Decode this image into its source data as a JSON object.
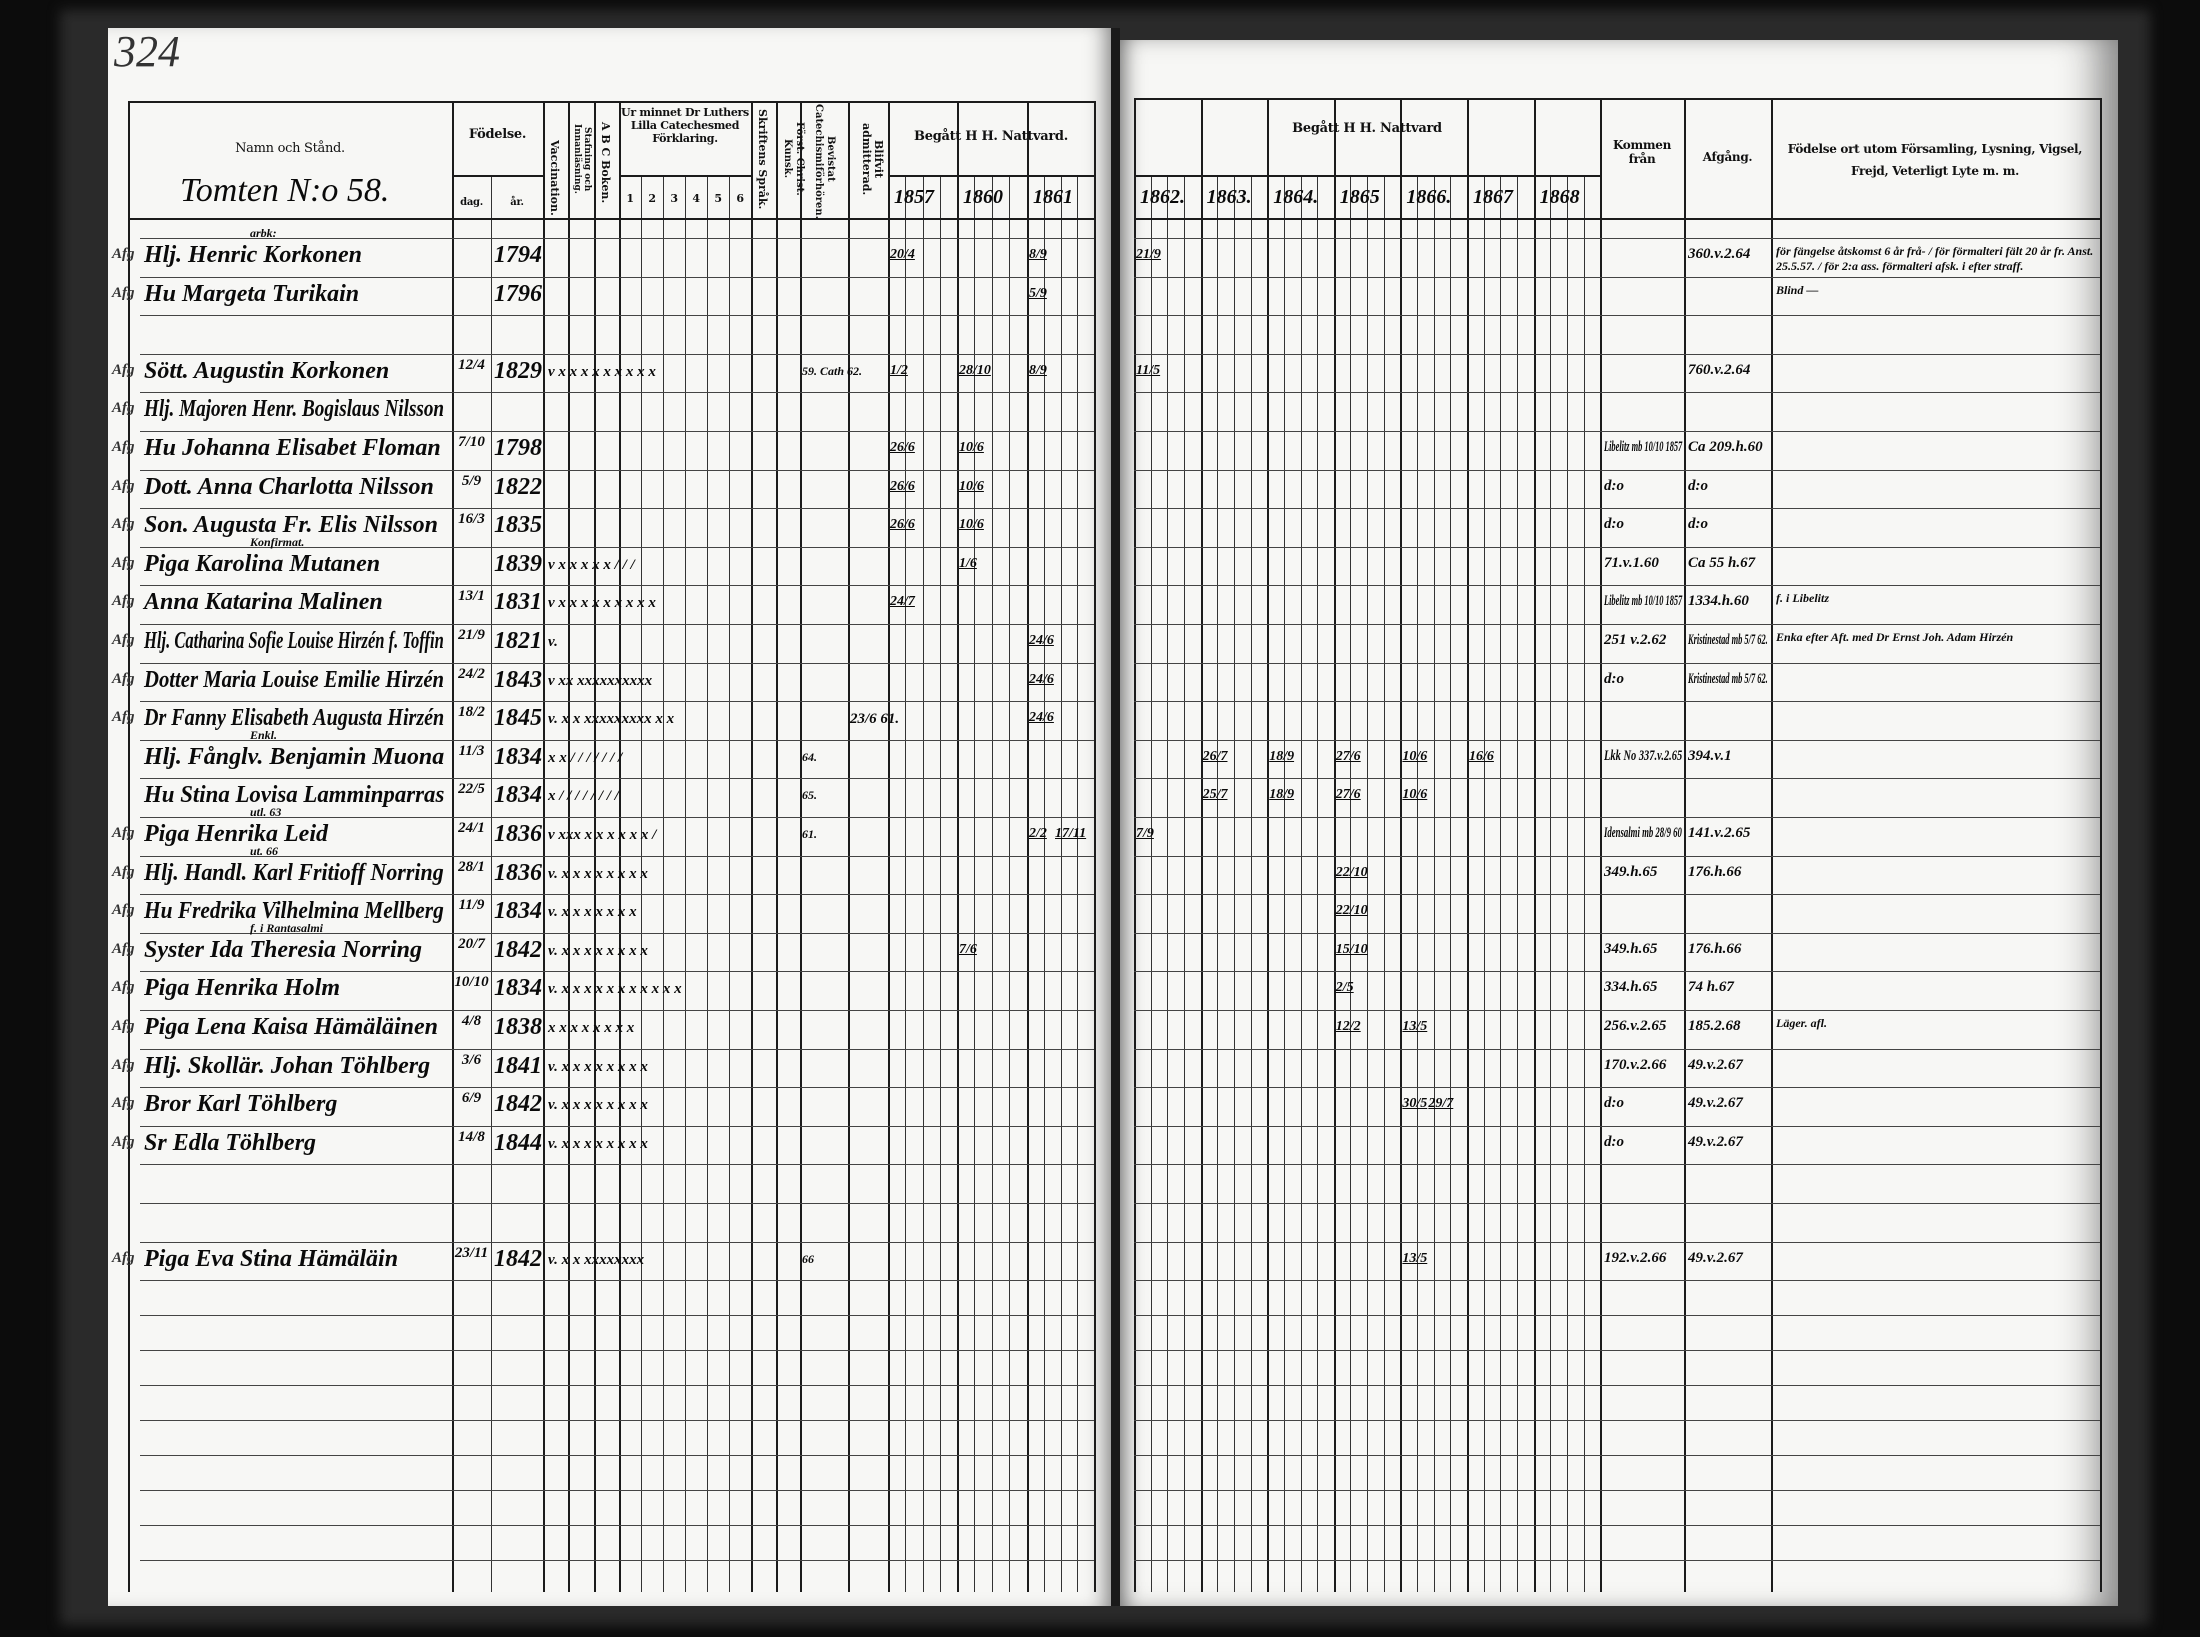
{
  "page_number": "324",
  "left_header": {
    "name_col": "Namn och Stånd.",
    "section_title": "Tomten N:o 58.",
    "fodelse": "Födelse.",
    "dag": "dag.",
    "ar": "år.",
    "vaccination": "Vaccination.",
    "lasning": "Stafning och Innanläsning.",
    "abc": "A B C Boken.",
    "ur_minnet": "Ur minnet Dr Luthers Lilla Catechesmed Förklaring.",
    "ur_minnet_numbers": [
      "1",
      "2",
      "3",
      "4",
      "5",
      "6"
    ],
    "skriftens": "Skriftens Språk.",
    "forst_christ": "Först. Christ. Kunsk.",
    "bevistat": "Bevistat Catechismiförhören.",
    "blifvit": "Blifvit admitterad.",
    "begatt": "Begått H H. Nattvard.",
    "years": [
      "1857",
      "1860",
      "1861"
    ]
  },
  "right_header": {
    "begatt": "Begått H H. Nattvard",
    "years": [
      "1862.",
      "1863.",
      "1864.",
      "1865",
      "1866.",
      "1867",
      "1868"
    ],
    "kommen": "Kommen från",
    "afgang": "Afgång.",
    "notes": "Födelse ort utom Församling, Lysning, Vigsel, Frejd, Veterligt Lyte m. m."
  },
  "rows": [
    {
      "margin": "Afg",
      "above": "arbk:",
      "name": "Hlj. Henric Korkonen",
      "day": "",
      "year": "1794",
      "marks": "",
      "bevistat": "",
      "blifvit": "",
      "communion": {
        "1857": [
          "20/4"
        ],
        "1861": [
          "8/9"
        ],
        "1862": [
          "21/9"
        ]
      },
      "kommen": "",
      "afgang": "360.v.2.64",
      "notes": "för fängelse åtskomst 6 år frå- / för förmalteri fält 20 år fr. Anst. 25.5.57. / för 2:a ass. förmalteri afsk. i efter straff."
    },
    {
      "margin": "Afg",
      "above": "",
      "name": "Hu Margeta Turikain",
      "day": "",
      "year": "1796",
      "marks": "",
      "bevistat": "",
      "blifvit": "",
      "communion": {
        "1861": [
          "5/9"
        ]
      },
      "kommen": "",
      "afgang": "",
      "notes": "Blind —"
    },
    {
      "margin": "",
      "above": "",
      "name": "",
      "day": "",
      "year": "",
      "marks": "",
      "bevistat": "",
      "blifvit": "",
      "communion": {},
      "kommen": "",
      "afgang": "",
      "notes": ""
    },
    {
      "margin": "Afg",
      "above": "",
      "name": "Sött. Augustin Korkonen",
      "day": "12/4",
      "year": "1829",
      "marks": "v x x x x x x x x x",
      "bevistat": "59. Cath 62.",
      "blifvit": "",
      "communion": {
        "1857": [
          "1/2"
        ],
        "1860": [
          "28/10"
        ],
        "1861": [
          "8/9"
        ],
        "1862": [
          "11/5"
        ]
      },
      "kommen": "",
      "afgang": "760.v.2.64",
      "notes": ""
    },
    {
      "margin": "Afg",
      "above": "",
      "name": "Hlj. Majoren Henr. Bogislaus Nilsson",
      "day": "",
      "year": "",
      "marks": "",
      "bevistat": "",
      "blifvit": "",
      "communion": {},
      "kommen": "",
      "afgang": "",
      "notes": ""
    },
    {
      "margin": "Afg",
      "above": "",
      "name": "Hu Johanna Elisabet Floman",
      "day": "7/10",
      "year": "1798",
      "marks": "",
      "bevistat": "",
      "blifvit": "",
      "communion": {
        "1857": [
          "26/6"
        ],
        "1860": [
          "10/6"
        ]
      },
      "kommen": "Libelitz mb 10/10 1857",
      "afgang": "Ca 209.h.60",
      "notes": ""
    },
    {
      "margin": "Afg",
      "above": "",
      "name": "Dott. Anna Charlotta Nilsson",
      "day": "5/9",
      "year": "1822",
      "marks": "",
      "bevistat": "",
      "blifvit": "",
      "communion": {
        "1857": [
          "26/6"
        ],
        "1860": [
          "10/6"
        ]
      },
      "kommen": "d:o",
      "afgang": "d:o",
      "notes": ""
    },
    {
      "margin": "Afg",
      "above": "",
      "name": "Son. Augusta Fr. Elis Nilsson",
      "day": "16/3",
      "year": "1835",
      "marks": "",
      "bevistat": "",
      "blifvit": "",
      "communion": {
        "1857": [
          "26/6"
        ],
        "1860": [
          "10/6"
        ]
      },
      "kommen": "d:o",
      "afgang": "d:o",
      "notes": ""
    },
    {
      "margin": "Afg",
      "above": "Konfirmat.",
      "name": "Piga Karolina Mutanen",
      "day": "",
      "year": "1839",
      "marks": "v x x x x x / / /",
      "bevistat": "",
      "blifvit": "",
      "communion": {
        "1860": [
          "1/6"
        ]
      },
      "kommen": "71.v.1.60",
      "afgang": "Ca 55 h.67",
      "notes": ""
    },
    {
      "margin": "Afg",
      "above": "",
      "name": "Anna Katarina Malinen",
      "day": "13/1",
      "year": "1831",
      "marks": "v x x x x x x x x x",
      "bevistat": "",
      "blifvit": "",
      "communion": {
        "1857": [
          "24/7"
        ]
      },
      "kommen": "Libelitz mb 10/10 1857",
      "afgang": "1334.h.60",
      "notes": "f. i Libelitz"
    },
    {
      "margin": "Afg",
      "above": "",
      "name": "Hlj. Catharina Sofie Louise Hirzén f. Toffin",
      "day": "21/9",
      "year": "1821",
      "marks": "v.",
      "bevistat": "",
      "blifvit": "",
      "communion": {
        "1861": [
          "24/6"
        ]
      },
      "kommen": "251 v.2.62",
      "afgang": "Kristinestad mb 5/7 62.",
      "notes": "Enka efter Aft. med Dr Ernst Joh. Adam Hirzén"
    },
    {
      "margin": "Afg",
      "above": "",
      "name": "Dotter Maria Louise Emilie Hirzén",
      "day": "24/2",
      "year": "1843",
      "marks": "v xx xxxxxxxxxx",
      "bevistat": "",
      "blifvit": "",
      "communion": {
        "1861": [
          "24/6"
        ]
      },
      "kommen": "d:o",
      "afgang": "Kristinestad mb 5/7 62.",
      "notes": ""
    },
    {
      "margin": "Afg",
      "above": "",
      "name": "Dr Fanny Elisabeth Augusta Hirzén",
      "day": "18/2",
      "year": "1845",
      "marks": "v. x x xxxxxxxxx x x",
      "bevistat": "",
      "blifvit": "23/6 61.",
      "communion": {
        "1861": [
          "24/6"
        ]
      },
      "kommen": "",
      "afgang": "",
      "notes": ""
    },
    {
      "margin": "",
      "above": "Enkl.",
      "name": "Hlj. Fånglv. Benjamin Muona",
      "day": "11/3",
      "year": "1834",
      "marks": "x x / / / / / / /",
      "bevistat": "64.",
      "blifvit": "",
      "communion": {
        "1863": [
          "26/7"
        ],
        "1864": [
          "18/9"
        ],
        "1865": [
          "27/6"
        ],
        "1866": [
          "10/6"
        ],
        "1867": [
          "16/6"
        ]
      },
      "kommen": "Lkk No 337.v.2.65",
      "afgang": "394.v.1",
      "notes": ""
    },
    {
      "margin": "",
      "above": "",
      "name": "Hu Stina Lovisa Lamminparras",
      "day": "22/5",
      "year": "1834",
      "marks": "x / / / / / / / /",
      "bevistat": "65.",
      "blifvit": "",
      "communion": {
        "1863": [
          "25/7"
        ],
        "1864": [
          "18/9"
        ],
        "1865": [
          "27/6"
        ],
        "1866": [
          "10/6"
        ]
      },
      "kommen": "",
      "afgang": "",
      "notes": ""
    },
    {
      "margin": "Afg",
      "above": "utl. 63",
      "name": "Piga Henrika Leid",
      "day": "24/1",
      "year": "1836",
      "marks": "v xxx x x x x x x /",
      "bevistat": "61.",
      "blifvit": "",
      "communion": {
        "1861": [
          "2/2",
          "17/11"
        ],
        "1862": [
          "7/9"
        ]
      },
      "kommen": "Idensalmi mb 28/9 60",
      "afgang": "141.v.2.65",
      "notes": ""
    },
    {
      "margin": "Afg",
      "above": "ut. 66",
      "name": "Hlj. Handl. Karl Fritioff Norring",
      "day": "28/1",
      "year": "1836",
      "marks": "v. x x x x x x x x",
      "bevistat": "",
      "blifvit": "",
      "communion": {
        "1865": [
          "22/10"
        ]
      },
      "kommen": "349.h.65",
      "afgang": "176.h.66",
      "notes": ""
    },
    {
      "margin": "Afg",
      "above": "",
      "name": "Hu Fredrika Vilhelmina Mellberg",
      "day": "11/9",
      "year": "1834",
      "marks": "v. x x x x x x x",
      "bevistat": "",
      "blifvit": "",
      "communion": {
        "1865": [
          "22/10"
        ]
      },
      "kommen": "",
      "afgang": "",
      "notes": ""
    },
    {
      "margin": "Afg",
      "above": "f. i Rantasalmi",
      "name": "Syster Ida Theresia Norring",
      "day": "20/7",
      "year": "1842",
      "marks": "v. x x x x x x x x",
      "bevistat": "",
      "blifvit": "",
      "communion": {
        "1860": [
          "7/6"
        ],
        "1865": [
          "15/10"
        ]
      },
      "kommen": "349.h.65",
      "afgang": "176.h.66",
      "notes": ""
    },
    {
      "margin": "Afg",
      "above": "",
      "name": "Piga Henrika Holm",
      "day": "10/10",
      "year": "1834",
      "marks": "v. x x x x x x x x x x x",
      "bevistat": "",
      "blifvit": "",
      "communion": {
        "1865": [
          "2/5"
        ]
      },
      "kommen": "334.h.65",
      "afgang": "74 h.67",
      "notes": ""
    },
    {
      "margin": "Afg",
      "above": "",
      "name": "Piga Lena Kaisa Hämäläinen",
      "day": "4/8",
      "year": "1838",
      "marks": "x x x x x x x x",
      "bevistat": "",
      "blifvit": "",
      "communion": {
        "1865": [
          "12/2"
        ],
        "1866": [
          "13/5"
        ]
      },
      "kommen": "256.v.2.65",
      "afgang": "185.2.68",
      "notes": "Läger. afl."
    },
    {
      "margin": "Afg",
      "above": "",
      "name": "Hlj. Skollär. Johan Töhlberg",
      "day": "3/6",
      "year": "1841",
      "marks": "v. x x x x x x x x",
      "bevistat": "",
      "blifvit": "",
      "communion": {},
      "kommen": "170.v.2.66",
      "afgang": "49.v.2.67",
      "notes": ""
    },
    {
      "margin": "Afg",
      "above": "",
      "name": "Bror Karl Töhlberg",
      "day": "6/9",
      "year": "1842",
      "marks": "v. x x x x x x x x",
      "bevistat": "",
      "blifvit": "",
      "communion": {
        "1866": [
          "30/5",
          "29/7"
        ]
      },
      "kommen": "d:o",
      "afgang": "49.v.2.67",
      "notes": ""
    },
    {
      "margin": "Afg",
      "above": "",
      "name": "Sr Edla Töhlberg",
      "day": "14/8",
      "year": "1844",
      "marks": "v. x x x x x x x x",
      "bevistat": "",
      "blifvit": "",
      "communion": {},
      "kommen": "d:o",
      "afgang": "49.v.2.67",
      "notes": ""
    },
    {
      "margin": "",
      "above": "",
      "name": "",
      "day": "",
      "year": "",
      "marks": "",
      "bevistat": "",
      "blifvit": "",
      "communion": {},
      "kommen": "",
      "afgang": "",
      "notes": ""
    },
    {
      "margin": "",
      "above": "",
      "name": "",
      "day": "",
      "year": "",
      "marks": "",
      "bevistat": "",
      "blifvit": "",
      "communion": {},
      "kommen": "",
      "afgang": "",
      "notes": ""
    },
    {
      "margin": "Afg",
      "above": "",
      "name": "Piga Eva Stina Hämäläin",
      "day": "23/11",
      "year": "1842",
      "marks": "v. x x xxxxxxxx",
      "bevistat": "66",
      "blifvit": "",
      "communion": {
        "1866": [
          "13/5"
        ]
      },
      "kommen": "192.v.2.66",
      "afgang": "49.v.2.67",
      "notes": ""
    }
  ]
}
